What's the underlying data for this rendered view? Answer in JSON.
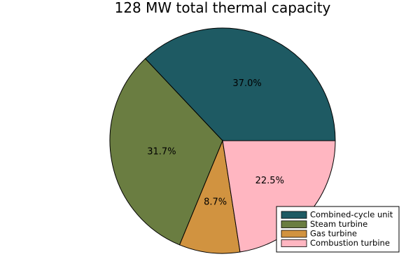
{
  "chart_data": {
    "type": "pie",
    "title": "128 MW total thermal capacity",
    "slices": [
      {
        "name": "Combined-cycle unit",
        "value": 37.0,
        "label": "37.0%",
        "color": "#1e5a63"
      },
      {
        "name": "Steam turbine",
        "value": 31.7,
        "label": "31.7%",
        "color": "#6a7d41"
      },
      {
        "name": "Gas turbine",
        "value": 8.7,
        "label": "8.7%",
        "color": "#d19340"
      },
      {
        "name": "Combustion turbine",
        "value": 22.5,
        "label": "22.5%",
        "color": "#ffb6c1"
      }
    ],
    "start_angle_deg": 0,
    "direction": "counterclockwise",
    "legend_position": "bottom-right"
  }
}
